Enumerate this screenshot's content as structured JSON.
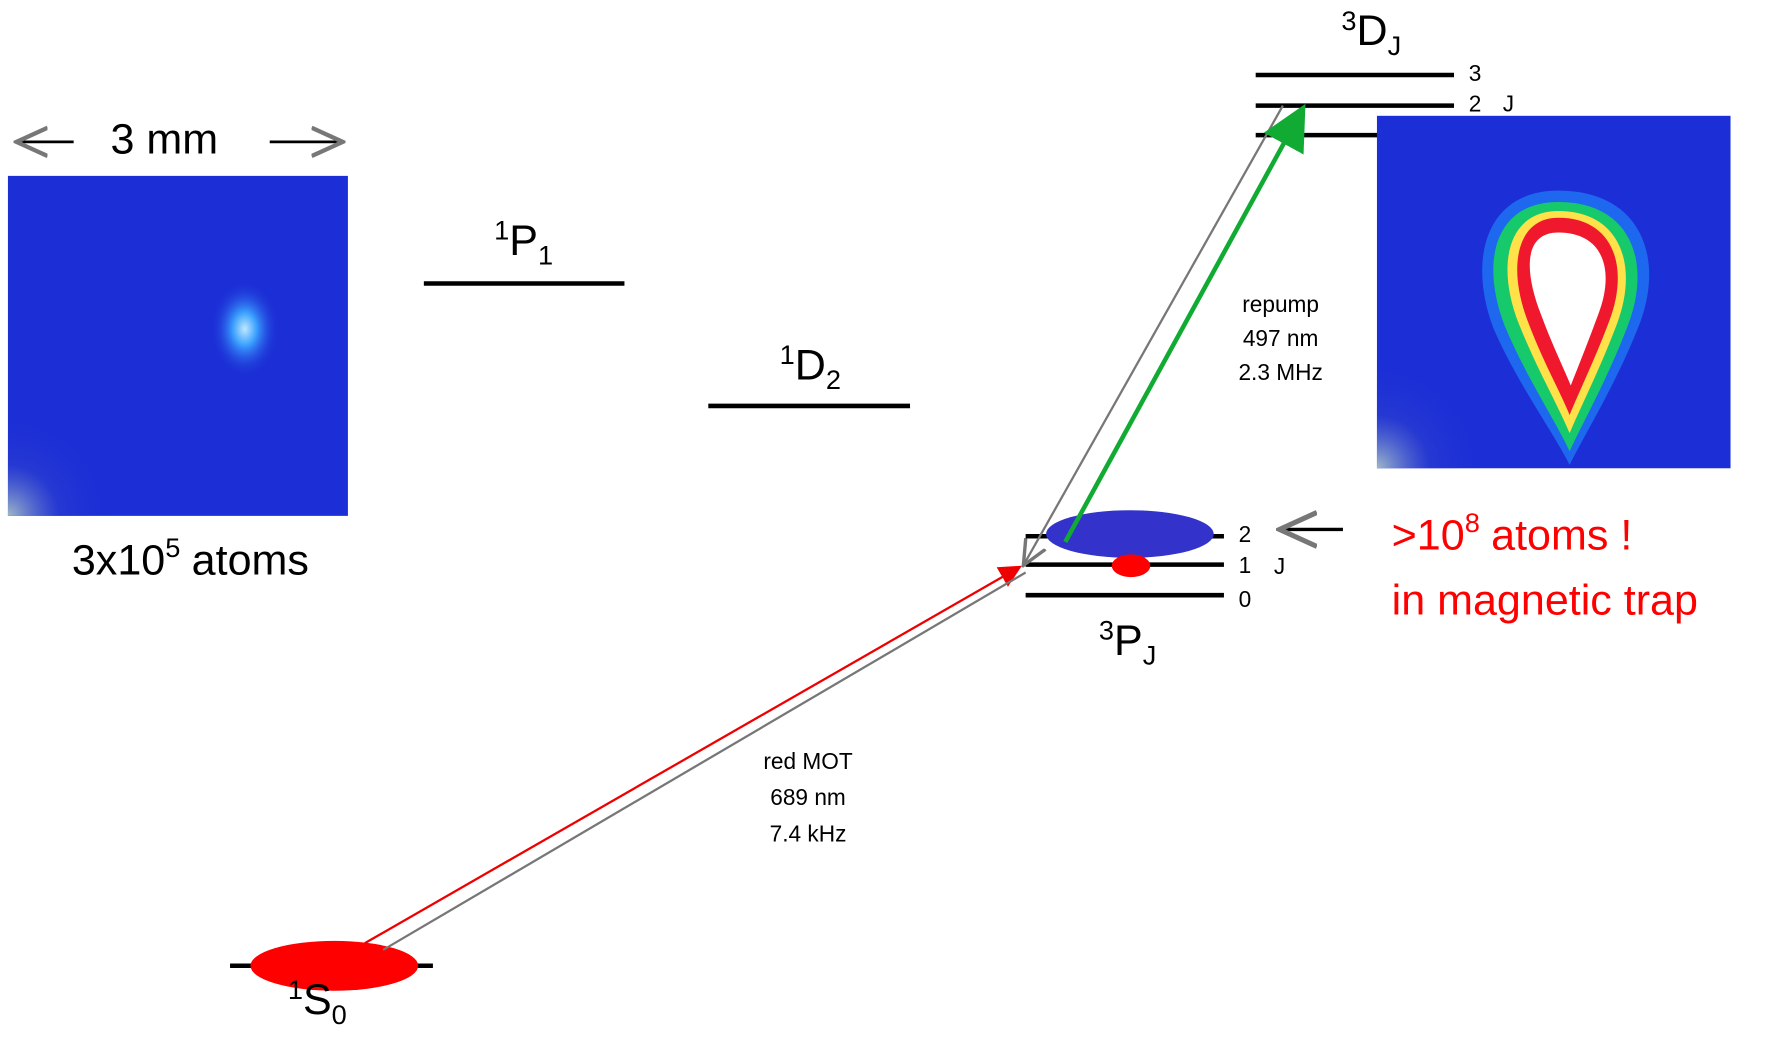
{
  "scale_label": "3 mm",
  "mot_image": {
    "count": {
      "base": "3x10",
      "exp": "5",
      "unit": "atoms"
    }
  },
  "levels": {
    "P1": {
      "sup": "1",
      "term": "P",
      "sub": "1"
    },
    "D2": {
      "sup": "1",
      "term": "D",
      "sub": "2"
    },
    "DJ": {
      "sup": "3",
      "term": "D",
      "sub": "J",
      "sublevels": [
        "3",
        "2"
      ],
      "j_label": "J"
    },
    "PJ": {
      "sup": "3",
      "term": "P",
      "sub": "J",
      "sublevels": [
        "2",
        "1",
        "0"
      ],
      "j_label": "J"
    },
    "S0": {
      "sup": "1",
      "term": "S",
      "sub": "0"
    }
  },
  "transitions": [
    {
      "name": "red MOT",
      "wavelength": "689 nm",
      "linewidth": "7.4 kHz"
    },
    {
      "name": "repump",
      "wavelength": "497 nm",
      "linewidth": "2.3 MHz"
    }
  ],
  "trap": {
    "count": {
      "base": ">10",
      "exp": "8",
      "unit": "atoms !"
    },
    "line2": "in magnetic trap"
  }
}
